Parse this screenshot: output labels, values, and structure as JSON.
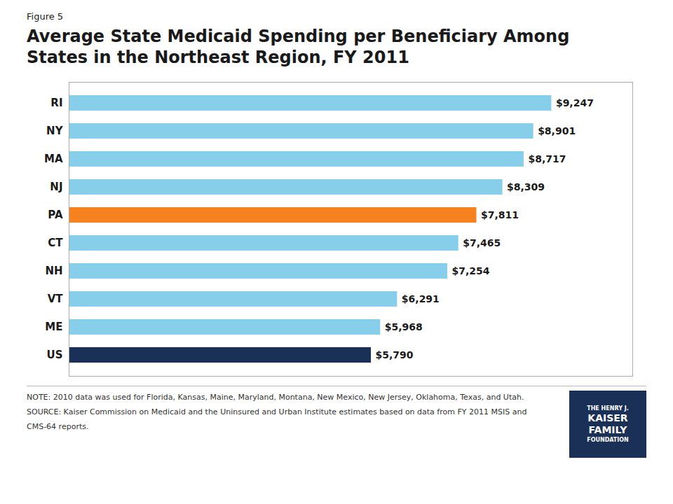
{
  "chart_data": {
    "type": "bar",
    "orientation": "horizontal",
    "subtitle": "Figure 5",
    "title": "Average State Medicaid Spending per Beneficiary Among\nStates in the Northeast Region, FY 2011",
    "categories": [
      "RI",
      "NY",
      "MA",
      "NJ",
      "PA",
      "CT",
      "NH",
      "VT",
      "ME",
      "US"
    ],
    "values": [
      9247,
      8901,
      8717,
      8309,
      7811,
      7465,
      7254,
      6291,
      5968,
      5790
    ],
    "value_labels": [
      "$9,247",
      "$8,901",
      "$8,717",
      "$8,309",
      "$7,811",
      "$7,465",
      "$7,254",
      "$6,291",
      "$5,968",
      "$5,790"
    ],
    "colors": [
      "#87CEEB",
      "#87CEEB",
      "#87CEEB",
      "#87CEEB",
      "#F5821F",
      "#87CEEB",
      "#87CEEB",
      "#87CEEB",
      "#87CEEB",
      "#1B3057"
    ],
    "xlim": [
      0,
      10800
    ],
    "data_labels": true,
    "tick_labels": "y",
    "grid": false,
    "annotations": [
      "NOTE: 2010 data was used for Florida, Kansas, Maine, Maryland, Montana, New Mexico, New Jersey, Oklahoma, Texas, and Utah.",
      "SOURCE: Kaiser Commission on Medicaid and the Uninsured and Urban Institute estimates based on data from FY 2011 MSIS and",
      "CMS-64 reports."
    ],
    "logo": [
      "THE HENRY J.",
      "KAISER",
      "FAMILY",
      "FOUNDATION"
    ]
  }
}
